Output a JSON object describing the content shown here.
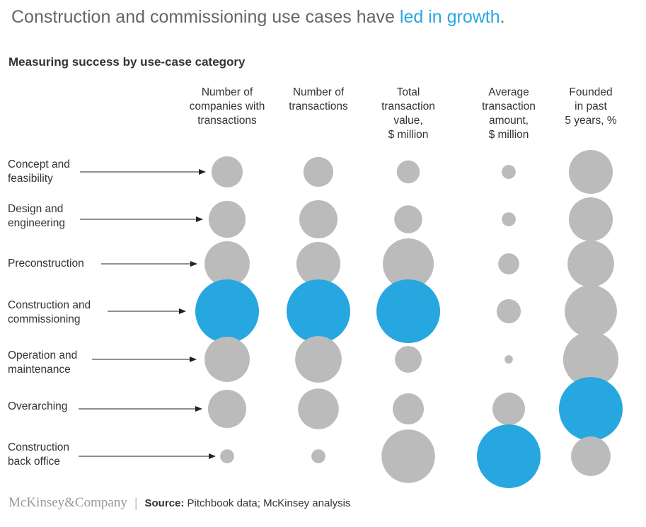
{
  "title": {
    "part1": "Construction and commissioning use cases have ",
    "highlight": "led in growth",
    "part2": "."
  },
  "footer": {
    "logo": "McKinsey&Company",
    "source_label": "Source:",
    "source_text": " Pitchbook data; McKinsey analysis"
  },
  "colors": {
    "gray": "#bbbbbb",
    "highlight": "#27a7e0"
  },
  "chart_data": {
    "type": "scatter",
    "subtype": "bubble",
    "title": "Measuring success by use-case category",
    "size_note": "relative bubble size index, largest in column = 100",
    "columns": [
      "Number of\ncompanies with\ntransactions",
      "Number of\ntransactions",
      "Total\ntransaction\nvalue,\n$ million",
      "Average\ntransaction\namount,\n$ million",
      "Founded\nin past\n5 years, %"
    ],
    "rows": [
      "Concept and\nfeasibility",
      "Design and\nengineering",
      "Preconstruction",
      "Construction and\ncommissioning",
      "Operation and\nmaintenance",
      "Overarching",
      "Construction\nback office"
    ],
    "series": [
      {
        "name": "Number of companies with transactions",
        "values": [
          49,
          58,
          71,
          100,
          71,
          60,
          22
        ],
        "highlight_index": 3
      },
      {
        "name": "Number of transactions",
        "values": [
          47,
          60,
          69,
          100,
          73,
          64,
          22
        ],
        "highlight_index": 3
      },
      {
        "name": "Total transaction value, $ million",
        "values": [
          36,
          44,
          80,
          100,
          42,
          49,
          84
        ],
        "highlight_index": 3
      },
      {
        "name": "Average transaction amount, $ million",
        "values": [
          22,
          22,
          33,
          38,
          13,
          51,
          100
        ],
        "highlight_index": 6
      },
      {
        "name": "Founded in past 5 years, %",
        "values": [
          69,
          69,
          73,
          82,
          87,
          100,
          62
        ],
        "highlight_index": 5
      }
    ]
  }
}
